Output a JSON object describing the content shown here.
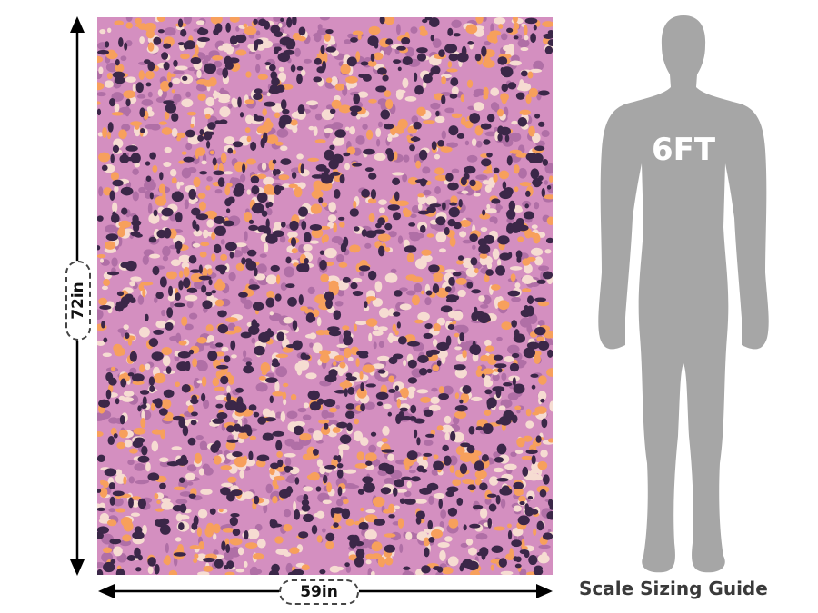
{
  "dimensions": {
    "height_label": "72in",
    "width_label": "59in"
  },
  "figure": {
    "height_label": "6FT",
    "caption": "Scale Sizing Guide"
  },
  "colors": {
    "pattern_base": "#d48fc0",
    "pattern_dark": "#3b2748",
    "pattern_orange": "#f7a05c",
    "pattern_cream": "#f6dcd2",
    "pattern_mauve": "#b06fa6",
    "silhouette": "#a6a6a6",
    "arrow": "#000000"
  }
}
